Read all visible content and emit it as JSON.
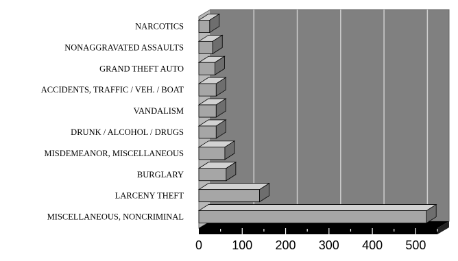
{
  "chart_data": {
    "type": "bar",
    "orientation": "horizontal",
    "style": "3d",
    "categories": [
      "NARCOTICS",
      "NONAGGRAVATED ASSAULTS",
      "GRAND THEFT AUTO",
      "ACCIDENTS, TRAFFIC / VEH. / BOAT",
      "VANDALISM",
      "DRUNK / ALCOHOL / DRUGS",
      "MISDEMEANOR, MISCELLANEOUS",
      "BURGLARY",
      "LARCENY THEFT",
      "MISCELLANEOUS, NONCRIMINAL"
    ],
    "values": [
      25,
      32,
      37,
      40,
      40,
      40,
      60,
      63,
      140,
      525
    ],
    "title": "",
    "xlabel": "",
    "ylabel": "",
    "xlim": [
      0,
      550
    ],
    "xticks": [
      "0",
      "100",
      "200",
      "300",
      "400",
      "500"
    ],
    "grid": true,
    "legend": "none",
    "colors": {
      "plot_back_wall": "#808080",
      "plot_side_wall": "#b8b8b8",
      "floor": "#000000",
      "gridline": "#cfcfcf",
      "bar_front": "#a6a6a6",
      "bar_top": "#d2d2d2",
      "bar_side": "#6e6e6e"
    }
  }
}
